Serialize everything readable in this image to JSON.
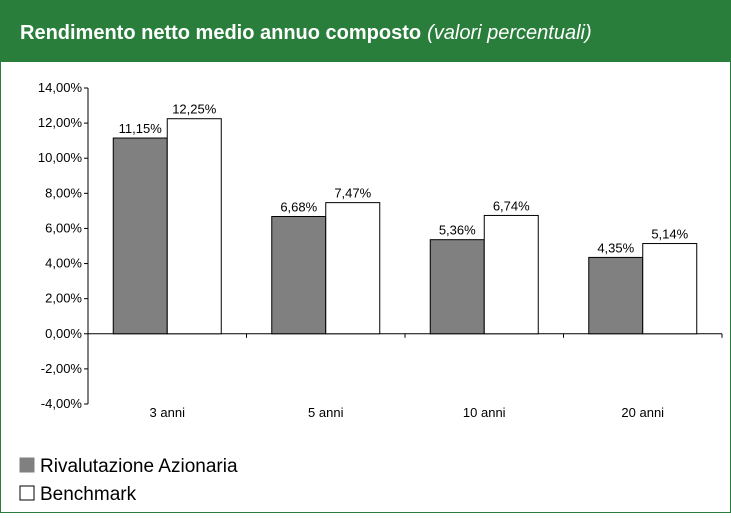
{
  "chart_data": {
    "type": "bar",
    "title": "Rendimento netto medio annuo composto",
    "subtitle": "(valori percentuali)",
    "categories": [
      "3 anni",
      "5 anni",
      "10 anni",
      "20 anni"
    ],
    "series": [
      {
        "name": "Rivalutazione Azionaria",
        "color": "#808080",
        "values": [
          11.15,
          6.68,
          5.36,
          4.35
        ],
        "value_labels": [
          "11,15%",
          "6,68%",
          "5,36%",
          "4,35%"
        ]
      },
      {
        "name": "Benchmark",
        "color": "#ffffff",
        "values": [
          12.25,
          7.47,
          6.74,
          5.14
        ],
        "value_labels": [
          "12,25%",
          "7,47%",
          "6,74%",
          "5,14%"
        ]
      }
    ],
    "ylim": [
      -4,
      14
    ],
    "yticks": [
      {
        "value": -4,
        "label": "-4,00%"
      },
      {
        "value": -2,
        "label": "-2,00%"
      },
      {
        "value": 0,
        "label": "0,00%"
      },
      {
        "value": 2,
        "label": "2,00%"
      },
      {
        "value": 4,
        "label": "4,00%"
      },
      {
        "value": 6,
        "label": "6,00%"
      },
      {
        "value": 8,
        "label": "8,00%"
      },
      {
        "value": 10,
        "label": "10,00%"
      },
      {
        "value": 12,
        "label": "12,00%"
      },
      {
        "value": 14,
        "label": "14,00%"
      }
    ],
    "grid": false
  }
}
